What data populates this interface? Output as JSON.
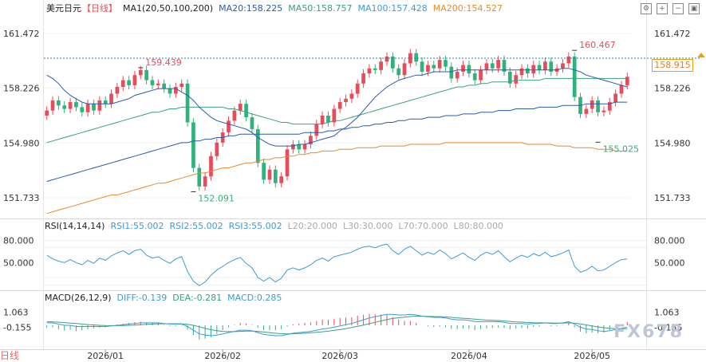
{
  "header": {
    "symbol": "美元日元",
    "period": "【日线】",
    "ma_group": "MA1(20,50,100,200)",
    "ma20": "MA20:158.225",
    "ma50": "MA50:158.757",
    "ma100": "MA100:157.428",
    "ma200": "MA200:154.527"
  },
  "rsi_header": {
    "name": "RSI(14,14,14)",
    "rsi1": "RSI1:55.002",
    "rsi2": "RSI2:55.002",
    "rsi3": "RSI3:55.002",
    "l20": "L20:20.000",
    "l30": "L30:30.000",
    "l70": "L70:70.000",
    "l80": "L80:80.000"
  },
  "macd_header": {
    "name": "MACD(26,12,9)",
    "diff": "DIFF:-0.139",
    "dea": "DEA:-0.281",
    "macd": "MACD:0.285"
  },
  "current_price": "158.915",
  "watermark": "FX678",
  "bottom_left_text": "日线",
  "colors": {
    "up": "#e74c5a",
    "down": "#2fb27b",
    "ma20": "#2a5caa",
    "ma50": "#3aa17d",
    "ma100": "#2a5caa",
    "ma200": "#e88a2b",
    "rsi": "#3d9bd6",
    "diff": "#3d9bd6",
    "dea": "#3aa17d"
  },
  "chart_data": {
    "type": "candlestick",
    "price_axis_ticks": [
      161.472,
      158.226,
      154.98,
      151.733
    ],
    "price_ylim": [
      150.6,
      162.6
    ],
    "x_tick_labels": [
      "2026/01",
      "2026/02",
      "2026/03",
      "2026/04",
      "2026/05"
    ],
    "x_tick_index": [
      10,
      30,
      50,
      72,
      93
    ],
    "annotations": [
      {
        "label": "159.439",
        "index": 16,
        "price": 159.439,
        "kind": "high"
      },
      {
        "label": "152.091",
        "index": 25,
        "price": 152.091,
        "kind": "low"
      },
      {
        "label": "160.467",
        "index": 90,
        "price": 160.467,
        "kind": "high"
      },
      {
        "label": "155.025",
        "index": 94,
        "price": 155.025,
        "kind": "low"
      }
    ],
    "closes": [
      156.9,
      157.5,
      157.2,
      157.0,
      157.4,
      157.1,
      156.8,
      157.3,
      156.9,
      157.5,
      157.3,
      157.9,
      158.3,
      158.7,
      158.4,
      159.0,
      159.3,
      158.7,
      158.4,
      158.5,
      158.2,
      157.9,
      158.3,
      158.5,
      156.2,
      153.5,
      152.4,
      153.0,
      154.2,
      155.0,
      155.6,
      156.3,
      156.9,
      157.3,
      156.5,
      155.8,
      153.8,
      152.8,
      153.4,
      152.6,
      153.0,
      154.6,
      154.9,
      154.6,
      154.9,
      155.4,
      156.1,
      156.6,
      156.2,
      157.0,
      157.4,
      157.6,
      157.9,
      158.5,
      159.1,
      159.4,
      159.3,
      159.8,
      160.1,
      159.4,
      159.0,
      159.7,
      160.3,
      159.8,
      159.2,
      159.6,
      159.4,
      159.9,
      159.5,
      158.8,
      159.2,
      159.6,
      159.1,
      158.7,
      159.3,
      159.7,
      159.4,
      159.9,
      159.2,
      158.5,
      159.0,
      159.4,
      159.1,
      159.6,
      159.3,
      159.8,
      159.2,
      159.4,
      159.7,
      160.1,
      157.7,
      156.7,
      157.0,
      157.5,
      156.8,
      156.9,
      157.4,
      157.9,
      158.4,
      158.9
    ],
    "ma20": [
      159.0,
      158.8,
      158.5,
      158.1,
      157.8,
      157.6,
      157.4,
      157.3,
      157.3,
      157.3,
      157.3,
      157.3,
      157.4,
      157.5,
      157.6,
      157.8,
      157.9,
      158.0,
      158.1,
      158.2,
      158.2,
      158.2,
      158.2,
      158.0,
      157.8,
      157.5,
      157.1,
      156.8,
      156.5,
      156.3,
      156.2,
      156.1,
      156.0,
      155.9,
      155.8,
      155.6,
      155.3,
      155.1,
      154.9,
      154.8,
      154.8,
      154.8,
      154.8,
      154.9,
      154.9,
      155.0,
      155.1,
      155.2,
      155.3,
      155.4,
      155.7,
      155.9,
      156.2,
      156.5,
      156.9,
      157.3,
      157.7,
      158.0,
      158.3,
      158.5,
      158.7,
      158.8,
      158.9,
      159.0,
      159.0,
      159.1,
      159.2,
      159.2,
      159.2,
      159.2,
      159.3,
      159.3,
      159.3,
      159.3,
      159.3,
      159.3,
      159.3,
      159.3,
      159.3,
      159.3,
      159.3,
      159.3,
      159.3,
      159.3,
      159.3,
      159.3,
      159.3,
      159.3,
      159.4,
      159.4,
      159.3,
      159.2,
      159.0,
      158.9,
      158.8,
      158.7,
      158.6,
      158.5,
      158.4,
      158.3
    ],
    "ma50": [
      155.0,
      155.1,
      155.2,
      155.3,
      155.4,
      155.5,
      155.6,
      155.7,
      155.8,
      155.9,
      156.0,
      156.1,
      156.2,
      156.3,
      156.4,
      156.5,
      156.6,
      156.7,
      156.8,
      156.8,
      156.9,
      157.0,
      157.0,
      157.1,
      157.1,
      157.1,
      157.1,
      157.1,
      157.1,
      157.1,
      157.1,
      157.0,
      157.0,
      156.9,
      156.8,
      156.7,
      156.6,
      156.5,
      156.4,
      156.3,
      156.2,
      156.2,
      156.1,
      156.1,
      156.1,
      156.1,
      156.1,
      156.1,
      156.2,
      156.3,
      156.3,
      156.4,
      156.5,
      156.6,
      156.7,
      156.8,
      156.9,
      157.0,
      157.1,
      157.2,
      157.3,
      157.4,
      157.5,
      157.6,
      157.7,
      157.8,
      157.9,
      158.0,
      158.1,
      158.2,
      158.3,
      158.3,
      158.4,
      158.4,
      158.5,
      158.5,
      158.6,
      158.6,
      158.6,
      158.6,
      158.7,
      158.7,
      158.7,
      158.7,
      158.7,
      158.8,
      158.8,
      158.8,
      158.8,
      158.8,
      158.8,
      158.8,
      158.8,
      158.8,
      158.8,
      158.8,
      158.8,
      158.8,
      158.8,
      158.8
    ],
    "ma100": [
      152.7,
      152.8,
      152.9,
      153.0,
      153.1,
      153.2,
      153.3,
      153.4,
      153.5,
      153.6,
      153.7,
      153.8,
      153.9,
      154.0,
      154.1,
      154.2,
      154.3,
      154.4,
      154.5,
      154.6,
      154.7,
      154.8,
      154.9,
      155.0,
      155.0,
      155.1,
      155.1,
      155.2,
      155.2,
      155.3,
      155.3,
      155.4,
      155.4,
      155.5,
      155.5,
      155.5,
      155.5,
      155.5,
      155.5,
      155.5,
      155.5,
      155.5,
      155.5,
      155.5,
      155.6,
      155.6,
      155.6,
      155.6,
      155.7,
      155.7,
      155.8,
      155.8,
      155.9,
      155.9,
      156.0,
      156.0,
      156.1,
      156.1,
      156.2,
      156.2,
      156.3,
      156.3,
      156.4,
      156.4,
      156.4,
      156.5,
      156.5,
      156.5,
      156.6,
      156.6,
      156.6,
      156.7,
      156.7,
      156.7,
      156.8,
      156.8,
      156.8,
      156.9,
      156.9,
      156.9,
      157.0,
      157.0,
      157.0,
      157.0,
      157.1,
      157.1,
      157.1,
      157.1,
      157.2,
      157.2,
      157.2,
      157.2,
      157.3,
      157.3,
      157.3,
      157.3,
      157.3,
      157.4,
      157.4,
      157.4
    ],
    "ma200": [
      150.8,
      150.9,
      151.0,
      151.1,
      151.2,
      151.3,
      151.4,
      151.5,
      151.6,
      151.7,
      151.8,
      151.9,
      151.9,
      152.0,
      152.1,
      152.2,
      152.3,
      152.4,
      152.5,
      152.6,
      152.6,
      152.7,
      152.8,
      152.9,
      153.0,
      153.1,
      153.2,
      153.2,
      153.3,
      153.4,
      153.5,
      153.5,
      153.6,
      153.7,
      153.8,
      153.8,
      153.9,
      154.0,
      154.0,
      154.1,
      154.1,
      154.2,
      154.2,
      154.3,
      154.3,
      154.4,
      154.4,
      154.5,
      154.5,
      154.5,
      154.6,
      154.6,
      154.6,
      154.7,
      154.7,
      154.7,
      154.7,
      154.8,
      154.8,
      154.8,
      154.8,
      154.8,
      154.9,
      154.9,
      154.9,
      154.9,
      154.9,
      154.9,
      155.0,
      155.0,
      155.0,
      155.0,
      155.0,
      155.0,
      155.0,
      155.0,
      155.0,
      155.0,
      155.0,
      155.0,
      155.0,
      155.0,
      154.9,
      154.9,
      154.9,
      154.9,
      154.9,
      154.8,
      154.8,
      154.8,
      154.7,
      154.7,
      154.7,
      154.7,
      154.6,
      154.6,
      154.6,
      154.5,
      154.5,
      154.5
    ],
    "rsi_axis_ticks": [
      80.0,
      50.0
    ],
    "rsi_ylim": [
      15,
      90
    ],
    "rsi": [
      60,
      55,
      52,
      50,
      54,
      50,
      47,
      53,
      49,
      56,
      53,
      59,
      63,
      66,
      61,
      66,
      68,
      60,
      56,
      58,
      53,
      49,
      55,
      58,
      38,
      25,
      19,
      24,
      33,
      40,
      45,
      50,
      54,
      57,
      49,
      43,
      30,
      25,
      30,
      24,
      29,
      40,
      43,
      40,
      43,
      47,
      53,
      56,
      52,
      58,
      60,
      62,
      64,
      68,
      71,
      72,
      70,
      73,
      75,
      66,
      61,
      68,
      72,
      66,
      60,
      64,
      61,
      67,
      62,
      55,
      59,
      63,
      57,
      53,
      60,
      64,
      61,
      66,
      58,
      51,
      56,
      60,
      57,
      62,
      59,
      64,
      58,
      60,
      63,
      67,
      45,
      37,
      40,
      45,
      39,
      40,
      45,
      50,
      54,
      55
    ],
    "macd_axis_ticks": [
      1.063,
      -0.155
    ],
    "macd_ylim": [
      -1.9,
      1.7
    ],
    "diff": [
      0.2,
      0.2,
      0.1,
      0.0,
      0.0,
      -0.1,
      -0.1,
      -0.1,
      -0.1,
      -0.1,
      -0.1,
      -0.05,
      0.0,
      0.05,
      0.1,
      0.15,
      0.2,
      0.2,
      0.2,
      0.2,
      0.15,
      0.1,
      0.1,
      0.1,
      -0.1,
      -0.4,
      -0.7,
      -0.8,
      -0.85,
      -0.8,
      -0.7,
      -0.6,
      -0.5,
      -0.4,
      -0.4,
      -0.45,
      -0.6,
      -0.75,
      -0.8,
      -0.85,
      -0.85,
      -0.75,
      -0.65,
      -0.6,
      -0.55,
      -0.5,
      -0.4,
      -0.3,
      -0.25,
      -0.15,
      -0.05,
      0.05,
      0.15,
      0.3,
      0.45,
      0.6,
      0.7,
      0.8,
      0.9,
      0.9,
      0.85,
      0.85,
      0.9,
      0.85,
      0.75,
      0.7,
      0.65,
      0.65,
      0.6,
      0.5,
      0.45,
      0.45,
      0.4,
      0.3,
      0.3,
      0.3,
      0.3,
      0.3,
      0.25,
      0.15,
      0.15,
      0.15,
      0.1,
      0.15,
      0.15,
      0.2,
      0.15,
      0.15,
      0.2,
      0.3,
      0.1,
      -0.15,
      -0.3,
      -0.35,
      -0.45,
      -0.5,
      -0.45,
      -0.35,
      -0.25,
      -0.14
    ],
    "dea": [
      0.3,
      0.28,
      0.26,
      0.22,
      0.18,
      0.14,
      0.1,
      0.06,
      0.03,
      0.0,
      -0.02,
      -0.03,
      -0.03,
      -0.02,
      0.0,
      0.02,
      0.05,
      0.08,
      0.1,
      0.12,
      0.13,
      0.13,
      0.13,
      0.12,
      0.08,
      0.0,
      -0.12,
      -0.25,
      -0.36,
      -0.45,
      -0.5,
      -0.52,
      -0.52,
      -0.5,
      -0.48,
      -0.47,
      -0.5,
      -0.55,
      -0.6,
      -0.65,
      -0.69,
      -0.7,
      -0.69,
      -0.67,
      -0.65,
      -0.62,
      -0.58,
      -0.53,
      -0.48,
      -0.42,
      -0.35,
      -0.27,
      -0.18,
      -0.09,
      0.02,
      0.13,
      0.25,
      0.36,
      0.47,
      0.56,
      0.62,
      0.67,
      0.72,
      0.75,
      0.75,
      0.74,
      0.72,
      0.71,
      0.69,
      0.65,
      0.61,
      0.58,
      0.55,
      0.5,
      0.46,
      0.43,
      0.41,
      0.39,
      0.36,
      0.32,
      0.28,
      0.26,
      0.23,
      0.21,
      0.2,
      0.2,
      0.19,
      0.18,
      0.18,
      0.2,
      0.18,
      0.11,
      0.03,
      -0.05,
      -0.13,
      -0.2,
      -0.25,
      -0.27,
      -0.27,
      -0.28
    ]
  }
}
